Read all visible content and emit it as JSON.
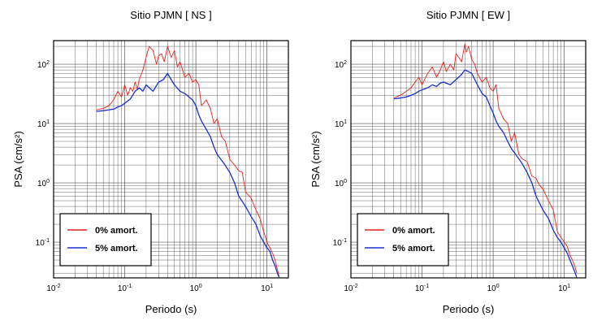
{
  "chart_data": [
    {
      "type": "line",
      "title": "Sitio PJMN [ NS ]",
      "xlabel": "Periodo (s)",
      "ylabel": "PSA (cm/s²)",
      "xscale": "log",
      "yscale": "log",
      "xlim": [
        0.01,
        20
      ],
      "ylim": [
        0.025,
        250
      ],
      "grid": true,
      "legend_position": "bottom-left",
      "xticks": [
        {
          "base": "10",
          "exp": "-2"
        },
        {
          "base": "10",
          "exp": "-1"
        },
        {
          "base": "10",
          "exp": "0"
        },
        {
          "base": "10",
          "exp": "1"
        }
      ],
      "yticks": [
        {
          "base": "10",
          "exp": "-1"
        },
        {
          "base": "10",
          "exp": "0"
        },
        {
          "base": "10",
          "exp": "1"
        },
        {
          "base": "10",
          "exp": "2"
        }
      ],
      "series": [
        {
          "name": "0% amort.",
          "color": "#e8201b",
          "x": [
            0.04,
            0.05,
            0.06,
            0.07,
            0.08,
            0.09,
            0.1,
            0.11,
            0.12,
            0.13,
            0.14,
            0.15,
            0.16,
            0.18,
            0.2,
            0.22,
            0.25,
            0.28,
            0.3,
            0.33,
            0.36,
            0.4,
            0.45,
            0.5,
            0.55,
            0.6,
            0.7,
            0.8,
            0.9,
            1.0,
            1.1,
            1.2,
            1.4,
            1.6,
            1.8,
            2.0,
            2.3,
            2.6,
            3.0,
            3.5,
            4.0,
            4.5,
            5.0,
            6.0,
            7.0,
            8.0,
            9.0,
            10.0,
            11.0,
            12.0,
            13.0,
            14.0,
            15.0
          ],
          "y": [
            17,
            18,
            20,
            25,
            35,
            28,
            45,
            30,
            40,
            35,
            50,
            38,
            55,
            80,
            130,
            200,
            170,
            100,
            140,
            150,
            110,
            200,
            130,
            170,
            90,
            110,
            60,
            70,
            50,
            55,
            45,
            20,
            25,
            18,
            10,
            12,
            6,
            5,
            2.5,
            2,
            1.6,
            1.5,
            0.7,
            0.55,
            0.35,
            0.25,
            0.15,
            0.1,
            0.08,
            0.065,
            0.05,
            0.035,
            0.025
          ]
        },
        {
          "name": "5% amort.",
          "color": "#1a2fd0",
          "x": [
            0.04,
            0.05,
            0.06,
            0.07,
            0.08,
            0.09,
            0.1,
            0.12,
            0.14,
            0.16,
            0.18,
            0.2,
            0.25,
            0.3,
            0.35,
            0.4,
            0.45,
            0.5,
            0.6,
            0.7,
            0.8,
            0.9,
            1.0,
            1.1,
            1.2,
            1.4,
            1.6,
            1.8,
            2.0,
            2.5,
            3.0,
            3.5,
            4.0,
            5.0,
            6.0,
            7.0,
            8.0,
            9.0,
            10.0,
            11.0,
            12.0,
            13.0,
            14.0,
            15.0
          ],
          "y": [
            16,
            16.5,
            17,
            17.5,
            19,
            20,
            22,
            26,
            35,
            40,
            35,
            45,
            35,
            50,
            55,
            70,
            55,
            45,
            35,
            32,
            28,
            25,
            20,
            14,
            11,
            8,
            6,
            4,
            3,
            2.1,
            1.5,
            1.0,
            0.6,
            0.4,
            0.27,
            0.2,
            0.13,
            0.1,
            0.08,
            0.07,
            0.05,
            0.04,
            0.03,
            0.025
          ]
        }
      ]
    },
    {
      "type": "line",
      "title": "Sitio PJMN [ EW ]",
      "xlabel": "Periodo (s)",
      "ylabel": "PSA (cm/s²)",
      "xscale": "log",
      "yscale": "log",
      "xlim": [
        0.01,
        20
      ],
      "ylim": [
        0.025,
        250
      ],
      "grid": true,
      "legend_position": "bottom-left",
      "xticks": [
        {
          "base": "10",
          "exp": "-2"
        },
        {
          "base": "10",
          "exp": "-1"
        },
        {
          "base": "10",
          "exp": "0"
        },
        {
          "base": "10",
          "exp": "1"
        }
      ],
      "yticks": [
        {
          "base": "10",
          "exp": "-1"
        },
        {
          "base": "10",
          "exp": "0"
        },
        {
          "base": "10",
          "exp": "1"
        },
        {
          "base": "10",
          "exp": "2"
        }
      ],
      "series": [
        {
          "name": "0% amort.",
          "color": "#e8201b",
          "x": [
            0.04,
            0.05,
            0.06,
            0.07,
            0.08,
            0.09,
            0.1,
            0.12,
            0.14,
            0.16,
            0.18,
            0.2,
            0.22,
            0.25,
            0.28,
            0.3,
            0.33,
            0.36,
            0.4,
            0.42,
            0.45,
            0.5,
            0.55,
            0.6,
            0.7,
            0.8,
            0.9,
            1.0,
            1.1,
            1.2,
            1.4,
            1.6,
            1.8,
            2.0,
            2.3,
            2.6,
            3.0,
            3.5,
            4.0,
            4.5,
            5.0,
            6.0,
            7.0,
            8.0,
            9.0,
            10.0,
            11.0,
            12.0,
            13.0,
            14.0,
            15.0
          ],
          "y": [
            27,
            30,
            35,
            40,
            50,
            60,
            45,
            70,
            90,
            60,
            80,
            110,
            75,
            100,
            80,
            150,
            130,
            110,
            220,
            160,
            200,
            120,
            100,
            70,
            50,
            60,
            40,
            35,
            45,
            18,
            12,
            10,
            5,
            7,
            3,
            2.5,
            2.3,
            1.3,
            1.2,
            0.9,
            0.8,
            0.5,
            0.35,
            0.15,
            0.12,
            0.1,
            0.085,
            0.06,
            0.05,
            0.04,
            0.03
          ]
        },
        {
          "name": "5% amort.",
          "color": "#1a2fd0",
          "x": [
            0.04,
            0.05,
            0.06,
            0.07,
            0.08,
            0.09,
            0.1,
            0.12,
            0.14,
            0.16,
            0.18,
            0.2,
            0.25,
            0.3,
            0.35,
            0.4,
            0.45,
            0.5,
            0.6,
            0.7,
            0.8,
            0.9,
            1.0,
            1.1,
            1.2,
            1.4,
            1.6,
            1.8,
            2.0,
            2.5,
            3.0,
            3.5,
            4.0,
            5.0,
            6.0,
            7.0,
            8.0,
            9.0,
            10.0,
            11.0,
            12.0,
            13.0,
            14.0,
            15.0
          ],
          "y": [
            26,
            27,
            28,
            30,
            32,
            35,
            37,
            40,
            45,
            42,
            48,
            50,
            45,
            55,
            65,
            80,
            75,
            70,
            45,
            32,
            28,
            20,
            15,
            11,
            9,
            7,
            5,
            3.8,
            3.2,
            2.2,
            1.5,
            1.0,
            0.6,
            0.35,
            0.25,
            0.16,
            0.12,
            0.1,
            0.08,
            0.065,
            0.05,
            0.04,
            0.032,
            0.025
          ]
        }
      ]
    }
  ]
}
